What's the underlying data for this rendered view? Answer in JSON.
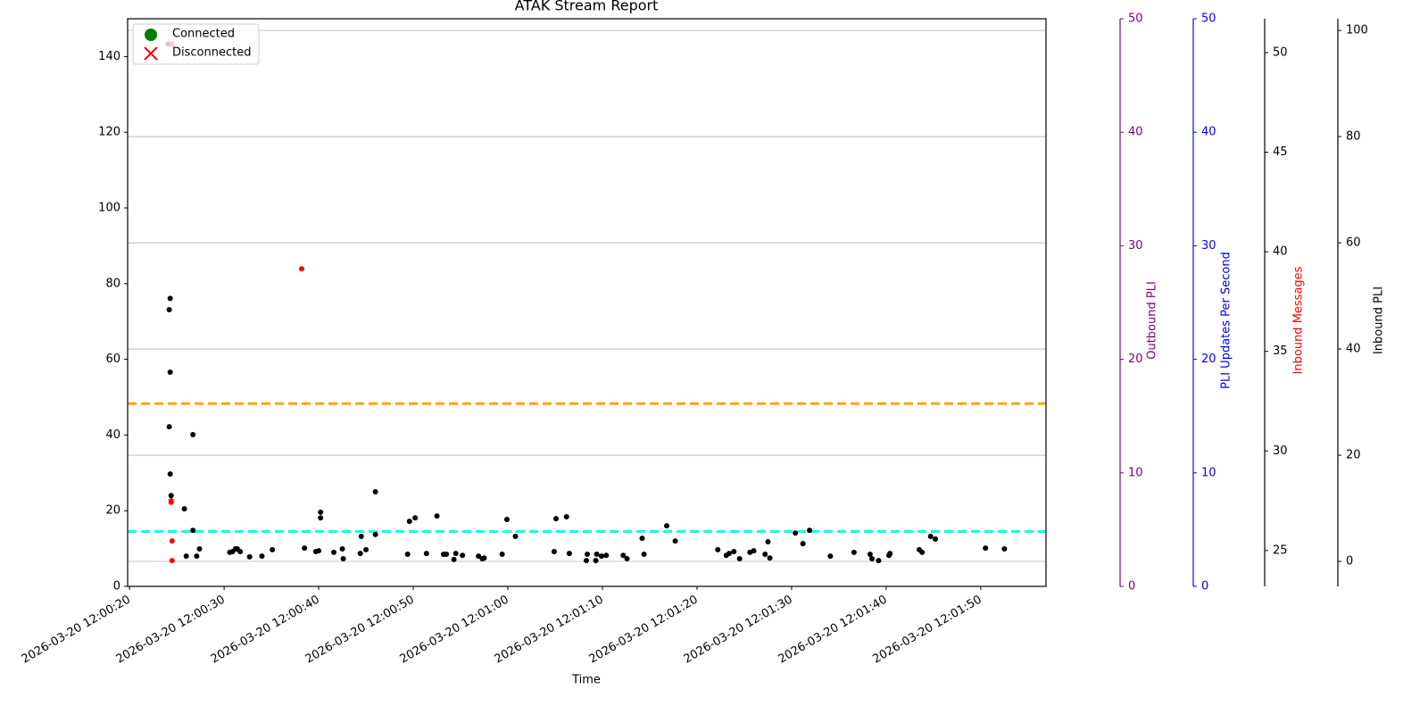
{
  "chart_data": {
    "type": "scatter",
    "title": "ATAK Stream Report",
    "xlabel": "Time",
    "xlim": [
      "2026-03-20 12:00:19.8",
      "2026-03-20 12:01:56.9"
    ],
    "xticks": [
      "2026-03-20 12:00:20",
      "2026-03-20 12:00:30",
      "2026-03-20 12:00:40",
      "2026-03-20 12:00:50",
      "2026-03-20 12:01:00",
      "2026-03-20 12:01:10",
      "2026-03-20 12:01:20",
      "2026-03-20 12:01:30",
      "2026-03-20 12:01:40",
      "2026-03-20 12:01:50"
    ],
    "ylim": [
      0,
      150
    ],
    "yticks": [
      0,
      20,
      40,
      60,
      80,
      100,
      120,
      140
    ],
    "y_axes": [
      {
        "label": "Outbound PLI",
        "color": "purple",
        "label_color": "purple",
        "ylim": [
          0,
          50
        ],
        "yticks": [
          0,
          10,
          20,
          30,
          40,
          50
        ]
      },
      {
        "label": "PLI Updates Per Second",
        "color": "blue",
        "label_color": "blue",
        "ylim": [
          0,
          50
        ],
        "yticks": [
          0,
          10,
          20,
          30,
          40,
          50
        ]
      },
      {
        "label": "Inbound Messages",
        "color": "black",
        "label_color": "red",
        "ylim": [
          23.2,
          51.7
        ],
        "yticks": [
          25,
          30,
          35,
          40,
          45,
          50
        ]
      },
      {
        "label": "Inbound PLI",
        "color": "black",
        "label_color": "black",
        "ylim": [
          -4.7,
          102.2
        ],
        "yticks": [
          0,
          20,
          40,
          60,
          80,
          100
        ],
        "grid": true
      }
    ],
    "hlines": [
      {
        "y": 48.3,
        "color": "orange"
      },
      {
        "y": 14.5,
        "color": "cyan"
      }
    ],
    "legend": [
      {
        "label": "Connected",
        "color": "green",
        "marker": "circle"
      },
      {
        "label": "Disconnected",
        "color": "red",
        "marker": "x"
      }
    ],
    "legend_position": "upper left",
    "series": [
      {
        "color": "black",
        "x": [
          "2026-03-20 12:00:24.1",
          "2026-03-20 12:00:24.5",
          "2026-03-20 12:00:24.3",
          "2026-03-20 12:00:24.2",
          "2026-03-20 12:00:24.3",
          "2026-03-20 12:00:24.2",
          "2026-03-20 12:00:24.3",
          "2026-03-20 12:00:24.4",
          "2026-03-20 12:00:25.8",
          "2026-03-20 12:00:26.7",
          "2026-03-20 12:00:26.7",
          "2026-03-20 12:00:26.0",
          "2026-03-20 12:00:27.1",
          "2026-03-20 12:00:27.4",
          "2026-03-20 12:00:30.6",
          "2026-03-20 12:00:30.9",
          "2026-03-20 12:00:31.2",
          "2026-03-20 12:00:31.4",
          "2026-03-20 12:00:31.7",
          "2026-03-20 12:00:32.7",
          "2026-03-20 12:00:34.0",
          "2026-03-20 12:00:35.1",
          "2026-03-20 12:00:38.5",
          "2026-03-20 12:00:39.7",
          "2026-03-20 12:00:40.0",
          "2026-03-20 12:00:40.2",
          "2026-03-20 12:00:40.2",
          "2026-03-20 12:00:41.6",
          "2026-03-20 12:00:42.5",
          "2026-03-20 12:00:42.6",
          "2026-03-20 12:00:44.4",
          "2026-03-20 12:00:44.5",
          "2026-03-20 12:00:45.0",
          "2026-03-20 12:00:46.0",
          "2026-03-20 12:00:46.0",
          "2026-03-20 12:00:49.4",
          "2026-03-20 12:00:49.6",
          "2026-03-20 12:00:50.2",
          "2026-03-20 12:00:51.4",
          "2026-03-20 12:00:52.5",
          "2026-03-20 12:00:53.2",
          "2026-03-20 12:00:53.5",
          "2026-03-20 12:00:54.3",
          "2026-03-20 12:00:54.5",
          "2026-03-20 12:00:55.2",
          "2026-03-20 12:00:56.9",
          "2026-03-20 12:00:57.3",
          "2026-03-20 12:00:57.5",
          "2026-03-20 12:00:59.4",
          "2026-03-20 12:00:59.9",
          "2026-03-20 12:01:00.8",
          "2026-03-20 12:01:04.9",
          "2026-03-20 12:01:05.1",
          "2026-03-20 12:01:06.2",
          "2026-03-20 12:01:06.5",
          "2026-03-20 12:01:08.3",
          "2026-03-20 12:01:08.4",
          "2026-03-20 12:01:09.3",
          "2026-03-20 12:01:09.4",
          "2026-03-20 12:01:09.9",
          "2026-03-20 12:01:10.4",
          "2026-03-20 12:01:12.2",
          "2026-03-20 12:01:12.6",
          "2026-03-20 12:01:14.2",
          "2026-03-20 12:01:14.4",
          "2026-03-20 12:01:16.8",
          "2026-03-20 12:01:17.7",
          "2026-03-20 12:01:22.2",
          "2026-03-20 12:01:23.1",
          "2026-03-20 12:01:23.4",
          "2026-03-20 12:01:23.9",
          "2026-03-20 12:01:24.5",
          "2026-03-20 12:01:25.6",
          "2026-03-20 12:01:26.0",
          "2026-03-20 12:01:27.2",
          "2026-03-20 12:01:27.5",
          "2026-03-20 12:01:27.7",
          "2026-03-20 12:01:30.4",
          "2026-03-20 12:01:31.2",
          "2026-03-20 12:01:31.9",
          "2026-03-20 12:01:34.1",
          "2026-03-20 12:01:36.6",
          "2026-03-20 12:01:38.3",
          "2026-03-20 12:01:38.5",
          "2026-03-20 12:01:39.2",
          "2026-03-20 12:01:40.3",
          "2026-03-20 12:01:40.4",
          "2026-03-20 12:01:43.5",
          "2026-03-20 12:01:43.8",
          "2026-03-20 12:01:44.7",
          "2026-03-20 12:01:45.2",
          "2026-03-20 12:01:50.5",
          "2026-03-20 12:01:52.5"
        ],
        "values": [
          143.3,
          143.3,
          76.1,
          73.1,
          56.6,
          42.2,
          29.7,
          24.0,
          20.5,
          40.1,
          14.8,
          8.0,
          8.0,
          9.9,
          9.0,
          9.2,
          9.9,
          9.9,
          9.2,
          7.8,
          8.0,
          9.7,
          10.1,
          9.2,
          9.4,
          19.6,
          18.1,
          9.0,
          9.9,
          7.3,
          8.7,
          13.2,
          9.7,
          25.0,
          13.7,
          8.5,
          17.2,
          18.1,
          8.7,
          18.6,
          8.5,
          8.5,
          7.1,
          8.7,
          8.2,
          8.0,
          7.3,
          7.5,
          8.5,
          17.7,
          13.2,
          9.2,
          17.9,
          18.4,
          8.7,
          6.8,
          8.5,
          6.8,
          8.5,
          8.0,
          8.2,
          8.2,
          7.3,
          12.7,
          8.5,
          16.0,
          12.0,
          9.7,
          8.2,
          8.7,
          9.2,
          7.3,
          9.0,
          9.4,
          8.5,
          11.8,
          7.5,
          14.1,
          11.3,
          14.8,
          8.0,
          9.0,
          8.5,
          7.3,
          6.8,
          8.2,
          8.7,
          9.7,
          9.0,
          13.2,
          12.5,
          10.1,
          9.9
        ]
      },
      {
        "color": "red",
        "x": [
          "2026-03-20 12:00:24.5",
          "2026-03-20 12:00:38.2",
          "2026-03-20 12:00:24.4",
          "2026-03-20 12:00:24.4",
          "2026-03-20 12:00:24.5",
          "2026-03-20 12:00:24.5"
        ],
        "values": [
          143.3,
          83.9,
          22.6,
          22.2,
          12.0,
          6.8
        ]
      }
    ]
  }
}
